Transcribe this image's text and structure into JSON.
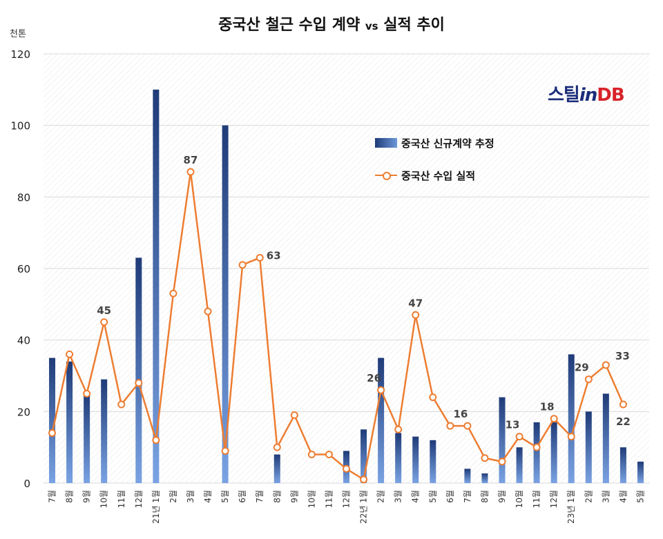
{
  "title_main": "중국산 철근 수입 계약",
  "title_vs": "vs",
  "title_tail": "실적 추이",
  "unit": "천톤",
  "logo": {
    "part1": "스틸",
    "part2": "in",
    "part3": "DB"
  },
  "colors": {
    "bar_dark": "#1f3b78",
    "bar_light": "#6f98d9",
    "line": "#ed7d31"
  },
  "chart_data": {
    "type": "bar+line",
    "ylim": [
      0,
      120
    ],
    "yticks": [
      0,
      20,
      40,
      60,
      80,
      100,
      120
    ],
    "categories": [
      "7월",
      "8월",
      "9월",
      "10월",
      "11월",
      "12월",
      "21년 1월",
      "2월",
      "3월",
      "4월",
      "5월",
      "6월",
      "7월",
      "8월",
      "9월",
      "10월",
      "11월",
      "12월",
      "22년 1월",
      "2월",
      "3월",
      "4월",
      "5월",
      "6월",
      "7월",
      "8월",
      "9월",
      "10월",
      "11월",
      "12월",
      "23년 1월",
      "2월",
      "3월",
      "4월",
      "5월"
    ],
    "series": [
      {
        "name": "중국산 신규계약 추정",
        "type": "bar",
        "values": [
          35,
          34,
          25,
          29,
          0,
          63,
          110,
          0,
          0,
          0,
          100,
          0,
          0,
          8,
          0,
          0,
          0,
          9,
          15,
          35,
          14,
          13,
          12,
          0,
          4,
          2.7,
          24,
          10,
          17,
          17,
          36,
          20,
          25,
          10,
          6
        ]
      },
      {
        "name": "중국산 수입 실적",
        "type": "line",
        "values": [
          14,
          36,
          25,
          45,
          22,
          28,
          12,
          53,
          87,
          48,
          9,
          61,
          63,
          10,
          19,
          8,
          8,
          4,
          1,
          26,
          15,
          47,
          24,
          16,
          16,
          7,
          6,
          13,
          10,
          18,
          13,
          29,
          33,
          22,
          null
        ]
      }
    ],
    "labels": [
      {
        "index": 3,
        "text": "45"
      },
      {
        "index": 8,
        "text": "87"
      },
      {
        "index": 12,
        "text": "63"
      },
      {
        "index": 19,
        "text": "26"
      },
      {
        "index": 21,
        "text": "47"
      },
      {
        "index": 24,
        "text": "16"
      },
      {
        "index": 27,
        "text": "13"
      },
      {
        "index": 29,
        "text": "18"
      },
      {
        "index": 31,
        "text": "29"
      },
      {
        "index": 32,
        "text": "33"
      },
      {
        "index": 33,
        "text": "22"
      }
    ],
    "legend_position": "upper-right",
    "grid": true
  }
}
